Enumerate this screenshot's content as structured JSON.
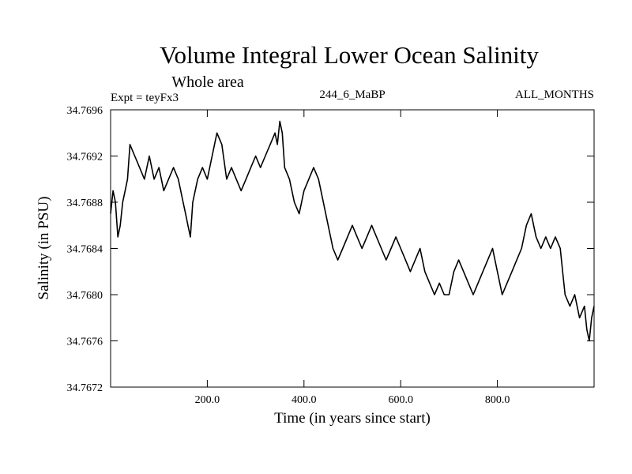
{
  "chart_data": {
    "type": "line",
    "title": "Volume Integral Lower Ocean Salinity",
    "subtitle": "Whole area",
    "expt_label": "Expt = teyFx3",
    "run_label": "244_6_MaBP",
    "months_label": "ALL_MONTHS",
    "xlabel": "Time (in years since start)",
    "ylabel": "Salinity (in PSU)",
    "xlim": [
      0,
      1000
    ],
    "ylim": [
      34.7672,
      34.7696
    ],
    "xticks": [
      200,
      400,
      600,
      800
    ],
    "xtick_labels": [
      "200.0",
      "400.0",
      "600.0",
      "800.0"
    ],
    "yticks": [
      34.7672,
      34.7676,
      34.768,
      34.7684,
      34.7688,
      34.7692,
      34.7696
    ],
    "ytick_labels": [
      "34.7672",
      "34.7676",
      "34.7680",
      "34.7684",
      "34.7688",
      "34.7692",
      "34.7696"
    ],
    "grid": false,
    "series": [
      {
        "name": "salinity",
        "x": [
          0,
          5,
          10,
          15,
          20,
          25,
          30,
          35,
          40,
          50,
          60,
          70,
          80,
          90,
          100,
          110,
          120,
          130,
          140,
          150,
          155,
          160,
          165,
          170,
          180,
          190,
          200,
          210,
          220,
          230,
          240,
          250,
          260,
          270,
          280,
          290,
          300,
          310,
          320,
          330,
          340,
          345,
          350,
          355,
          360,
          370,
          380,
          390,
          400,
          410,
          420,
          430,
          440,
          450,
          460,
          470,
          480,
          490,
          500,
          510,
          520,
          530,
          540,
          550,
          560,
          570,
          580,
          590,
          600,
          610,
          620,
          630,
          640,
          650,
          660,
          670,
          680,
          690,
          700,
          710,
          720,
          730,
          740,
          750,
          760,
          770,
          780,
          790,
          800,
          810,
          820,
          830,
          840,
          850,
          860,
          870,
          880,
          890,
          900,
          910,
          920,
          930,
          935,
          940,
          950,
          960,
          970,
          980,
          985,
          990,
          995,
          1000
        ],
        "values": [
          34.7687,
          34.7689,
          34.7688,
          34.7685,
          34.7686,
          34.7688,
          34.7689,
          34.769,
          34.7693,
          34.7692,
          34.7691,
          34.769,
          34.7692,
          34.769,
          34.7691,
          34.7689,
          34.769,
          34.7691,
          34.769,
          34.7688,
          34.7687,
          34.7686,
          34.7685,
          34.7688,
          34.769,
          34.7691,
          34.769,
          34.7692,
          34.7694,
          34.7693,
          34.769,
          34.7691,
          34.769,
          34.7689,
          34.769,
          34.7691,
          34.7692,
          34.7691,
          34.7692,
          34.7693,
          34.7694,
          34.7693,
          34.7695,
          34.7694,
          34.7691,
          34.769,
          34.7688,
          34.7687,
          34.7689,
          34.769,
          34.7691,
          34.769,
          34.7688,
          34.7686,
          34.7684,
          34.7683,
          34.7684,
          34.7685,
          34.7686,
          34.7685,
          34.7684,
          34.7685,
          34.7686,
          34.7685,
          34.7684,
          34.7683,
          34.7684,
          34.7685,
          34.7684,
          34.7683,
          34.7682,
          34.7683,
          34.7684,
          34.7682,
          34.7681,
          34.768,
          34.7681,
          34.768,
          34.768,
          34.7682,
          34.7683,
          34.7682,
          34.7681,
          34.768,
          34.7681,
          34.7682,
          34.7683,
          34.7684,
          34.7682,
          34.768,
          34.7681,
          34.7682,
          34.7683,
          34.7684,
          34.7686,
          34.7687,
          34.7685,
          34.7684,
          34.7685,
          34.7684,
          34.7685,
          34.7684,
          34.7682,
          34.768,
          34.7679,
          34.768,
          34.7678,
          34.7679,
          34.7677,
          34.7676,
          34.7678,
          34.7679
        ]
      }
    ]
  }
}
